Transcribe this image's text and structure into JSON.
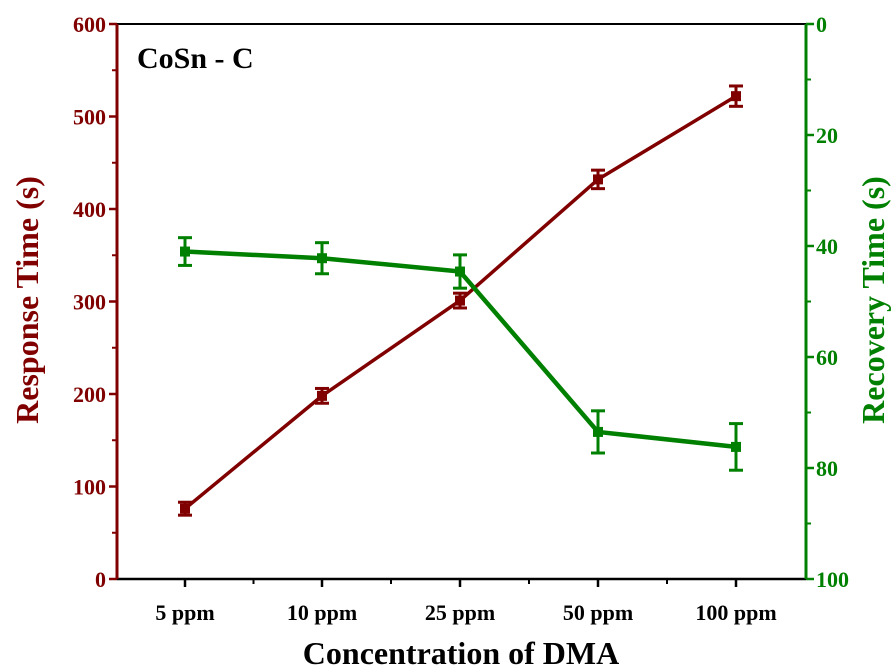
{
  "chart_data": {
    "type": "line",
    "title": "CoSn - C",
    "xlabel": "Concentration of DMA",
    "categories": [
      "5 ppm",
      "10 ppm",
      "25 ppm",
      "50 ppm",
      "100 ppm"
    ],
    "y_left": {
      "label": "Response Time (s)",
      "range": [
        0,
        600
      ],
      "ticks": [
        0,
        100,
        200,
        300,
        400,
        500,
        600
      ],
      "inverted": false,
      "color": "#800000"
    },
    "y_right": {
      "label": "Recovery Time (s)",
      "range": [
        0,
        100
      ],
      "ticks": [
        0,
        20,
        40,
        60,
        80,
        100
      ],
      "inverted": true,
      "color": "#008000"
    },
    "series": [
      {
        "axis": "left",
        "color": "#800000",
        "values": [
          76,
          198,
          301,
          432,
          522
        ],
        "errors": [
          7,
          8,
          8,
          10,
          11
        ]
      },
      {
        "axis": "right",
        "color": "#008000",
        "values": [
          41,
          42.2,
          44.6,
          73.5,
          76.2
        ],
        "errors": [
          2.5,
          2.8,
          3,
          3.8,
          4.2
        ]
      }
    ],
    "grid": false,
    "legend": "none"
  }
}
